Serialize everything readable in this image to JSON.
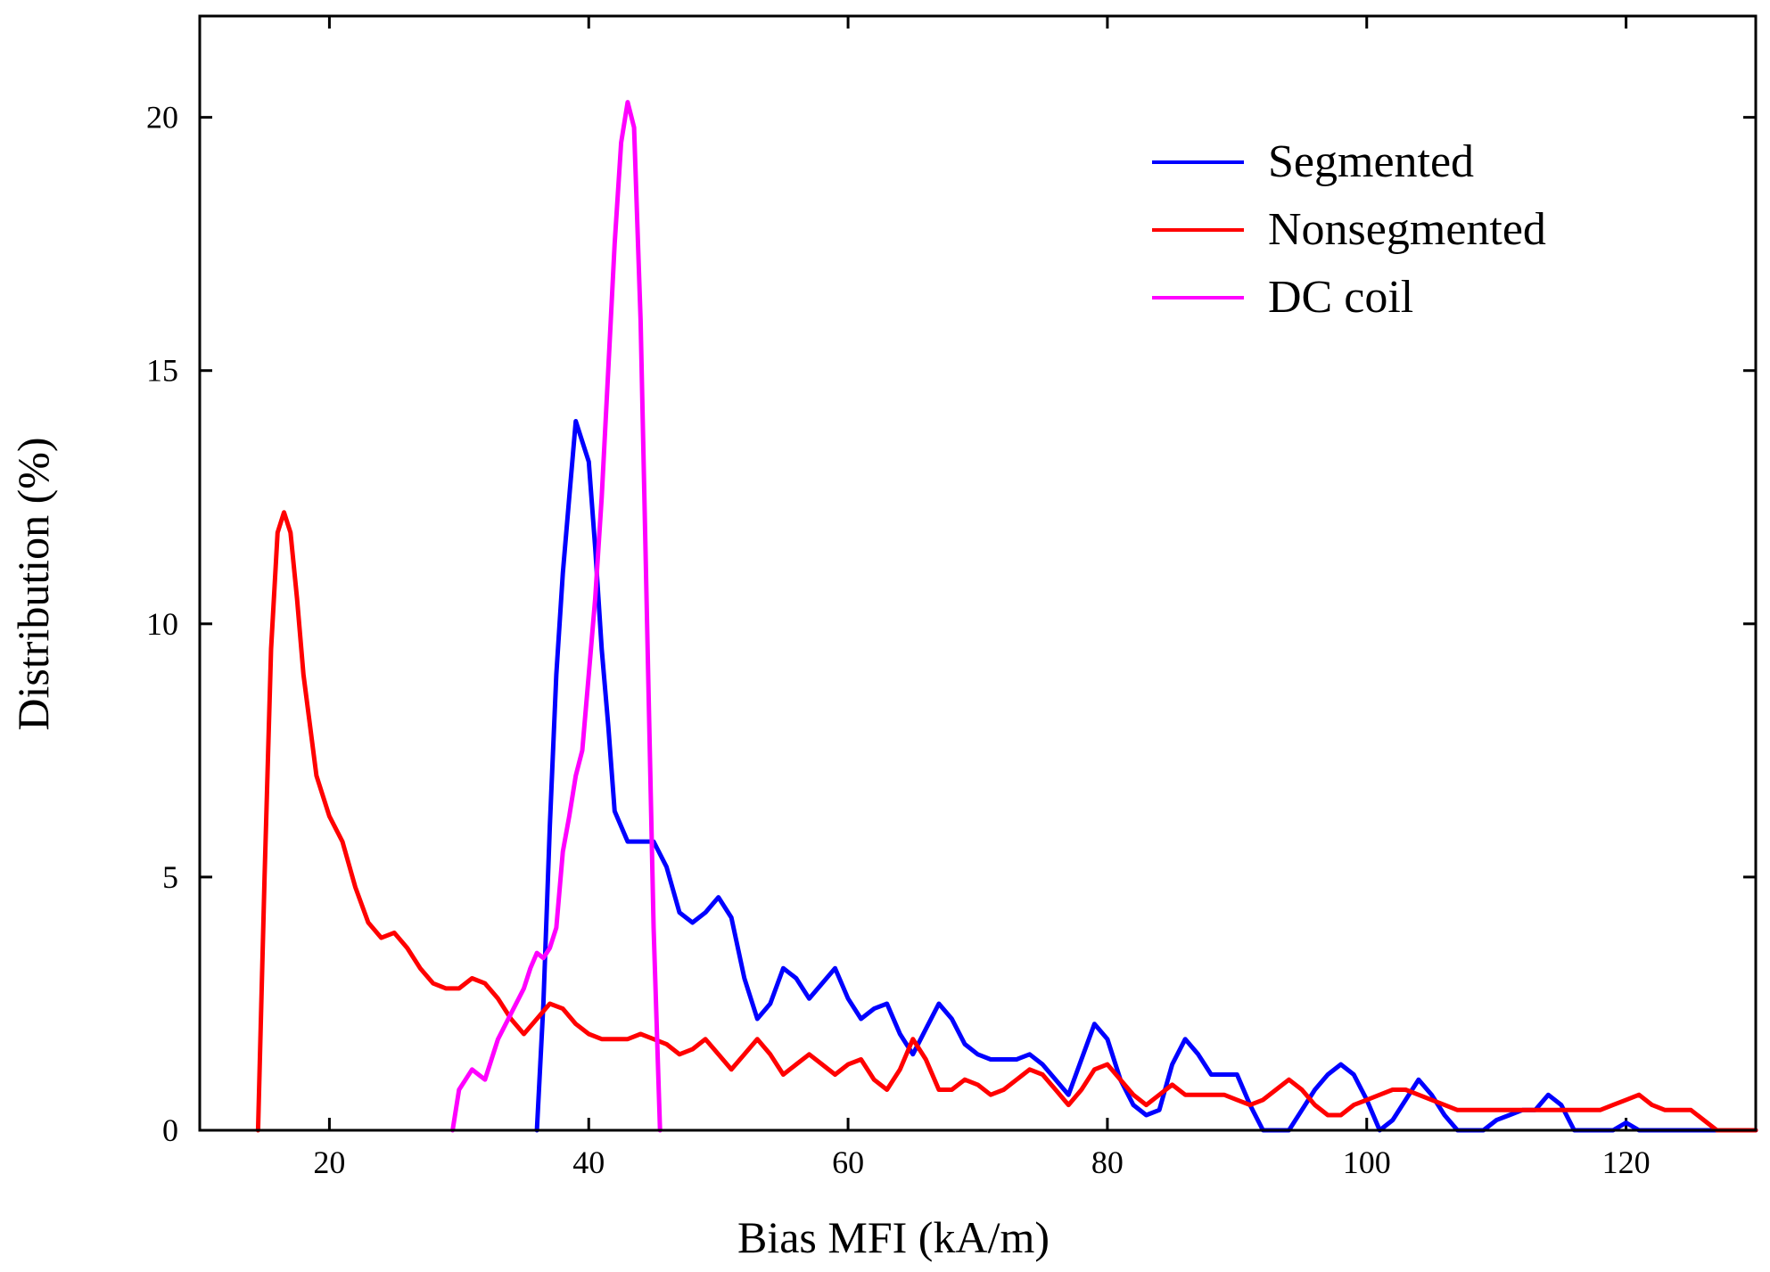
{
  "chart_data": {
    "type": "line",
    "title": "",
    "xlabel": "Bias MFI (kA/m)",
    "ylabel": "Distribution (%)",
    "xlim": [
      10,
      130
    ],
    "ylim": [
      0,
      22
    ],
    "x_ticks": [
      20,
      40,
      60,
      80,
      100,
      120
    ],
    "x_tick_labels": [
      "20",
      "40",
      "60",
      "80",
      "100",
      "120"
    ],
    "y_ticks": [
      0,
      5,
      10,
      15,
      20
    ],
    "y_tick_labels": [
      "0",
      "5",
      "10",
      "15",
      "20"
    ],
    "grid": false,
    "legend_position": "top-right",
    "series": [
      {
        "name": "Segmented",
        "color": "#0000ff",
        "x": [
          36,
          36.5,
          37,
          37.5,
          38,
          38.5,
          39,
          39.5,
          40,
          40.5,
          41,
          41.5,
          42,
          43,
          44,
          45,
          46,
          47,
          48,
          49,
          50,
          51,
          52,
          53,
          54,
          55,
          56,
          57,
          58,
          59,
          60,
          61,
          62,
          63,
          64,
          65,
          66,
          67,
          68,
          69,
          70,
          71,
          72,
          73,
          74,
          75,
          76,
          77,
          78,
          79,
          80,
          81,
          82,
          83,
          84,
          85,
          86,
          87,
          88,
          89,
          90,
          91,
          92,
          93,
          94,
          95,
          96,
          97,
          98,
          99,
          100,
          101,
          102,
          103,
          104,
          105,
          106,
          107,
          108,
          109,
          110,
          111,
          112,
          113,
          114,
          115,
          116,
          117,
          118,
          119,
          120,
          121,
          122,
          123,
          124,
          125,
          126,
          127,
          128,
          129,
          130
        ],
        "values": [
          0,
          2.5,
          6.0,
          9.0,
          11.0,
          12.5,
          14.0,
          13.6,
          13.2,
          11.5,
          9.5,
          8.0,
          6.3,
          5.7,
          5.7,
          5.7,
          5.2,
          4.3,
          4.1,
          4.3,
          4.6,
          4.2,
          3.0,
          2.2,
          2.5,
          3.2,
          3.0,
          2.6,
          2.9,
          3.2,
          2.6,
          2.2,
          2.4,
          2.5,
          1.9,
          1.5,
          2.0,
          2.5,
          2.2,
          1.7,
          1.5,
          1.4,
          1.4,
          1.4,
          1.5,
          1.3,
          1.0,
          0.7,
          1.4,
          2.1,
          1.8,
          1.0,
          0.5,
          0.3,
          0.4,
          1.3,
          1.8,
          1.5,
          1.1,
          1.1,
          1.1,
          0.5,
          0.0,
          0.0,
          0.0,
          0.4,
          0.8,
          1.1,
          1.3,
          1.1,
          0.6,
          0.0,
          0.2,
          0.6,
          1.0,
          0.7,
          0.3,
          0.0,
          0.0,
          0.0,
          0.2,
          0.3,
          0.4,
          0.4,
          0.7,
          0.5,
          0.0,
          0.0,
          0.0,
          0.0,
          0.15,
          0.0,
          0.0,
          0.0,
          0.0,
          0.0,
          0.0,
          0.0,
          0.0,
          0.0,
          0.0
        ]
      },
      {
        "name": "Nonsegmented",
        "color": "#ff0000",
        "x": [
          14.5,
          15,
          15.5,
          16,
          16.5,
          17,
          17.5,
          18,
          19,
          20,
          21,
          22,
          23,
          24,
          25,
          26,
          27,
          28,
          29,
          30,
          31,
          32,
          33,
          34,
          35,
          36,
          37,
          38,
          39,
          40,
          41,
          42,
          43,
          44,
          45,
          46,
          47,
          48,
          49,
          50,
          51,
          52,
          53,
          54,
          55,
          56,
          57,
          58,
          59,
          60,
          61,
          62,
          63,
          64,
          65,
          66,
          67,
          68,
          69,
          70,
          71,
          72,
          73,
          74,
          75,
          76,
          77,
          78,
          79,
          80,
          81,
          82,
          83,
          84,
          85,
          86,
          87,
          88,
          89,
          90,
          91,
          92,
          93,
          94,
          95,
          96,
          97,
          98,
          99,
          100,
          101,
          102,
          103,
          104,
          105,
          106,
          107,
          108,
          109,
          110,
          111,
          112,
          113,
          114,
          115,
          116,
          117,
          118,
          119,
          120,
          121,
          122,
          123,
          124,
          125,
          126,
          127,
          128,
          129,
          130
        ],
        "values": [
          0,
          5.0,
          9.5,
          11.8,
          12.2,
          11.8,
          10.5,
          9.0,
          7.0,
          6.2,
          5.7,
          4.8,
          4.1,
          3.8,
          3.9,
          3.6,
          3.2,
          2.9,
          2.8,
          2.8,
          3.0,
          2.9,
          2.6,
          2.2,
          1.9,
          2.2,
          2.5,
          2.4,
          2.1,
          1.9,
          1.8,
          1.8,
          1.8,
          1.9,
          1.8,
          1.7,
          1.5,
          1.6,
          1.8,
          1.5,
          1.2,
          1.5,
          1.8,
          1.5,
          1.1,
          1.3,
          1.5,
          1.3,
          1.1,
          1.3,
          1.4,
          1.0,
          0.8,
          1.2,
          1.8,
          1.4,
          0.8,
          0.8,
          1.0,
          0.9,
          0.7,
          0.8,
          1.0,
          1.2,
          1.1,
          0.8,
          0.5,
          0.8,
          1.2,
          1.3,
          1.0,
          0.7,
          0.5,
          0.7,
          0.9,
          0.7,
          0.7,
          0.7,
          0.7,
          0.6,
          0.5,
          0.6,
          0.8,
          1.0,
          0.8,
          0.5,
          0.3,
          0.3,
          0.5,
          0.6,
          0.7,
          0.8,
          0.8,
          0.7,
          0.6,
          0.5,
          0.4,
          0.4,
          0.4,
          0.4,
          0.4,
          0.4,
          0.4,
          0.4,
          0.4,
          0.4,
          0.4,
          0.4,
          0.5,
          0.6,
          0.7,
          0.5,
          0.4,
          0.4,
          0.4,
          0.2,
          0.0,
          0.0,
          0.0,
          0.0
        ]
      },
      {
        "name": "DC coil",
        "color": "#ff00ff",
        "x": [
          29.5,
          30,
          30.5,
          31,
          31.5,
          32,
          33,
          34,
          35,
          35.5,
          36,
          36.5,
          37,
          37.5,
          38,
          38.5,
          39,
          39.5,
          40,
          40.5,
          41,
          41.5,
          42,
          42.5,
          43,
          43.5,
          44,
          44.5,
          45,
          45.5
        ],
        "values": [
          0,
          0.8,
          1.0,
          1.2,
          1.1,
          1.0,
          1.8,
          2.3,
          2.8,
          3.2,
          3.5,
          3.4,
          3.6,
          4.0,
          5.5,
          6.2,
          7.0,
          7.5,
          9.0,
          10.5,
          12.5,
          15.0,
          17.5,
          19.5,
          20.3,
          19.8,
          16.0,
          10.0,
          4.0,
          0
        ]
      }
    ]
  }
}
